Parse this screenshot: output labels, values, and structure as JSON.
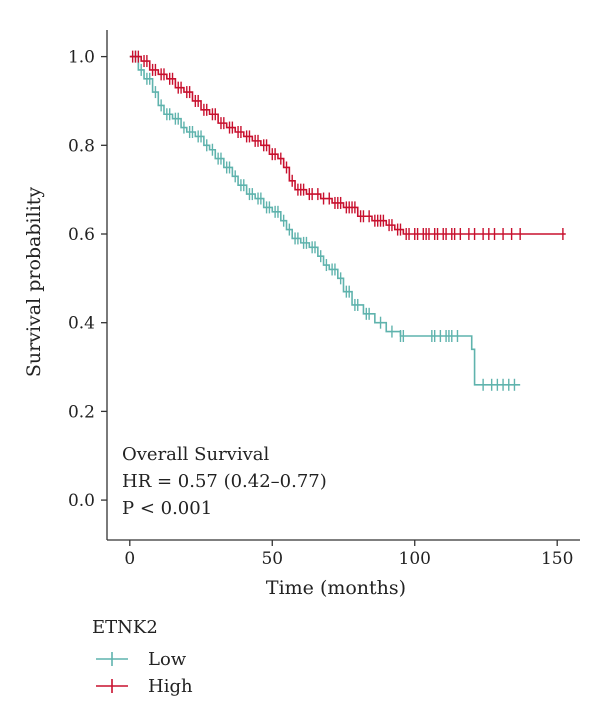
{
  "chart_data": {
    "type": "line",
    "subtype": "kaplan-meier",
    "xlabel": "Time (months)",
    "ylabel": "Survival probability",
    "xlim": [
      -8,
      158
    ],
    "ylim": [
      -0.09,
      1.06
    ],
    "xticks": [
      0,
      50,
      100,
      150
    ],
    "xtick_labels": [
      "0",
      "50",
      "100",
      "150"
    ],
    "yticks": [
      0.0,
      0.2,
      0.4,
      0.6,
      0.8,
      1.0
    ],
    "ytick_labels": [
      "0.0",
      "0.2",
      "0.4",
      "0.6",
      "0.8",
      "1.0"
    ],
    "grid": false,
    "legend_position": "bottom-left",
    "annotations": [
      "Overall Survival",
      "HR = 0.57 (0.42–0.77)",
      "P < 0.001"
    ],
    "legend": {
      "title": "ETNK2"
    },
    "series": [
      {
        "name": "Low",
        "color": "#5fb3ad",
        "steps": [
          [
            0,
            1.0
          ],
          [
            3,
            0.97
          ],
          [
            5,
            0.95
          ],
          [
            8,
            0.92
          ],
          [
            10,
            0.89
          ],
          [
            12,
            0.87
          ],
          [
            15,
            0.86
          ],
          [
            18,
            0.84
          ],
          [
            20,
            0.83
          ],
          [
            23,
            0.82
          ],
          [
            26,
            0.8
          ],
          [
            28,
            0.79
          ],
          [
            30,
            0.77
          ],
          [
            33,
            0.75
          ],
          [
            36,
            0.73
          ],
          [
            38,
            0.71
          ],
          [
            41,
            0.69
          ],
          [
            44,
            0.68
          ],
          [
            47,
            0.66
          ],
          [
            50,
            0.65
          ],
          [
            53,
            0.63
          ],
          [
            55,
            0.61
          ],
          [
            57,
            0.59
          ],
          [
            60,
            0.58
          ],
          [
            63,
            0.57
          ],
          [
            66,
            0.55
          ],
          [
            68,
            0.53
          ],
          [
            70,
            0.52
          ],
          [
            73,
            0.5
          ],
          [
            75,
            0.47
          ],
          [
            78,
            0.44
          ],
          [
            82,
            0.42
          ],
          [
            86,
            0.4
          ],
          [
            90,
            0.38
          ],
          [
            95,
            0.37
          ],
          [
            120,
            0.34
          ],
          [
            121,
            0.26
          ],
          [
            137,
            0.26
          ]
        ],
        "censor_times": [
          2,
          4,
          6,
          7,
          9,
          11,
          13,
          14,
          16,
          17,
          19,
          21,
          22,
          24,
          25,
          27,
          29,
          31,
          32,
          34,
          35,
          37,
          39,
          40,
          42,
          43,
          45,
          46,
          48,
          49,
          51,
          52,
          54,
          56,
          58,
          59,
          61,
          62,
          64,
          65,
          67,
          69,
          71,
          72,
          74,
          76,
          77,
          79,
          80,
          83,
          84,
          88,
          92,
          95,
          96,
          106,
          107,
          109,
          111,
          112,
          113,
          115,
          124,
          127,
          129,
          131,
          133,
          135
        ]
      },
      {
        "name": "High",
        "color": "#c8102e",
        "steps": [
          [
            0,
            1.0
          ],
          [
            4,
            0.99
          ],
          [
            7,
            0.97
          ],
          [
            10,
            0.96
          ],
          [
            13,
            0.95
          ],
          [
            16,
            0.93
          ],
          [
            19,
            0.92
          ],
          [
            22,
            0.9
          ],
          [
            25,
            0.88
          ],
          [
            28,
            0.87
          ],
          [
            31,
            0.85
          ],
          [
            34,
            0.84
          ],
          [
            37,
            0.83
          ],
          [
            40,
            0.82
          ],
          [
            43,
            0.81
          ],
          [
            46,
            0.8
          ],
          [
            49,
            0.78
          ],
          [
            52,
            0.77
          ],
          [
            54,
            0.75
          ],
          [
            56,
            0.72
          ],
          [
            58,
            0.7
          ],
          [
            62,
            0.69
          ],
          [
            67,
            0.68
          ],
          [
            71,
            0.67
          ],
          [
            75,
            0.66
          ],
          [
            80,
            0.64
          ],
          [
            85,
            0.63
          ],
          [
            90,
            0.62
          ],
          [
            93,
            0.61
          ],
          [
            96,
            0.6
          ],
          [
            153,
            0.6
          ]
        ],
        "censor_times": [
          1,
          2,
          3,
          5,
          6,
          8,
          9,
          11,
          12,
          14,
          15,
          17,
          18,
          20,
          21,
          23,
          24,
          26,
          27,
          29,
          30,
          32,
          33,
          35,
          36,
          38,
          39,
          41,
          42,
          44,
          45,
          47,
          48,
          50,
          51,
          53,
          55,
          57,
          59,
          60,
          61,
          63,
          64,
          66,
          68,
          70,
          72,
          73,
          74,
          76,
          77,
          78,
          79,
          81,
          82,
          84,
          86,
          87,
          88,
          89,
          91,
          92,
          94,
          95,
          97,
          98,
          100,
          101,
          103,
          104,
          105,
          107,
          108,
          110,
          111,
          113,
          114,
          116,
          119,
          121,
          124,
          126,
          128,
          131,
          134,
          137,
          152
        ]
      }
    ]
  }
}
